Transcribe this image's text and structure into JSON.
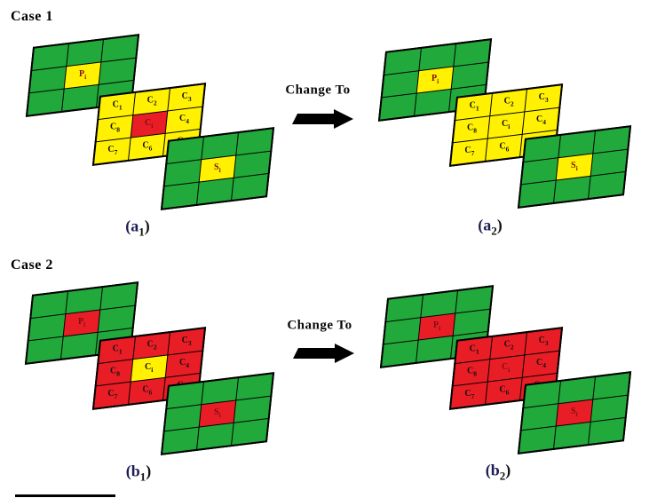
{
  "colors": {
    "plane_green": "#22A93C",
    "plane_yellow": "#FFF101",
    "plane_red": "#E91D25",
    "label_dark_red": "#7A1116",
    "label_black": "#111111",
    "caption_navy": "#1C1C54",
    "caption_black": "#111111",
    "arrow_black": "#000000"
  },
  "figure": {
    "cases": [
      {
        "label": "Case 1",
        "change_to": "Change To",
        "panels": [
          {
            "caption": {
              "pre": "(a",
              "sub": "1",
              "post": ")"
            },
            "planes": [
              {
                "name": "previous-frame-plane",
                "cells": [
                  {
                    "bg": "green"
                  },
                  {
                    "bg": "green"
                  },
                  {
                    "bg": "green"
                  },
                  {
                    "bg": "green"
                  },
                  {
                    "bg": "yellow",
                    "label": {
                      "base": "P",
                      "sub": "i"
                    },
                    "label_color": "dark_red"
                  },
                  {
                    "bg": "green"
                  },
                  {
                    "bg": "green"
                  },
                  {
                    "bg": "green"
                  },
                  {
                    "bg": "green"
                  }
                ]
              },
              {
                "name": "current-frame-plane",
                "cells": [
                  {
                    "bg": "yellow",
                    "label": {
                      "base": "C",
                      "sub": "1"
                    },
                    "label_color": "black"
                  },
                  {
                    "bg": "yellow",
                    "label": {
                      "base": "C",
                      "sub": "2"
                    },
                    "label_color": "black"
                  },
                  {
                    "bg": "yellow",
                    "label": {
                      "base": "C",
                      "sub": "3"
                    },
                    "label_color": "black"
                  },
                  {
                    "bg": "yellow",
                    "label": {
                      "base": "C",
                      "sub": "8"
                    },
                    "label_color": "black"
                  },
                  {
                    "bg": "red",
                    "label": {
                      "base": "C",
                      "sub": "i"
                    },
                    "label_color": "dark_red"
                  },
                  {
                    "bg": "yellow",
                    "label": {
                      "base": "C",
                      "sub": "4"
                    },
                    "label_color": "black"
                  },
                  {
                    "bg": "yellow",
                    "label": {
                      "base": "C",
                      "sub": "7"
                    },
                    "label_color": "black"
                  },
                  {
                    "bg": "yellow",
                    "label": {
                      "base": "C",
                      "sub": "6"
                    },
                    "label_color": "black"
                  },
                  {
                    "bg": "yellow",
                    "label": {
                      "base": "C",
                      "sub": "5"
                    },
                    "label_color": "black"
                  }
                ]
              },
              {
                "name": "subsequent-frame-plane",
                "cells": [
                  {
                    "bg": "green"
                  },
                  {
                    "bg": "green"
                  },
                  {
                    "bg": "green"
                  },
                  {
                    "bg": "green"
                  },
                  {
                    "bg": "yellow",
                    "label": {
                      "base": "S",
                      "sub": "i"
                    },
                    "label_color": "dark_red"
                  },
                  {
                    "bg": "green"
                  },
                  {
                    "bg": "green"
                  },
                  {
                    "bg": "green"
                  },
                  {
                    "bg": "green"
                  }
                ]
              }
            ]
          },
          {
            "caption": {
              "pre": "(a",
              "sub": "2",
              "post": ")"
            },
            "planes": [
              {
                "name": "previous-frame-plane",
                "cells": [
                  {
                    "bg": "green"
                  },
                  {
                    "bg": "green"
                  },
                  {
                    "bg": "green"
                  },
                  {
                    "bg": "green"
                  },
                  {
                    "bg": "yellow",
                    "label": {
                      "base": "P",
                      "sub": "i"
                    },
                    "label_color": "dark_red"
                  },
                  {
                    "bg": "green"
                  },
                  {
                    "bg": "green"
                  },
                  {
                    "bg": "green"
                  },
                  {
                    "bg": "green"
                  }
                ]
              },
              {
                "name": "current-frame-plane",
                "cells": [
                  {
                    "bg": "yellow",
                    "label": {
                      "base": "C",
                      "sub": "1"
                    },
                    "label_color": "black"
                  },
                  {
                    "bg": "yellow",
                    "label": {
                      "base": "C",
                      "sub": "2"
                    },
                    "label_color": "black"
                  },
                  {
                    "bg": "yellow",
                    "label": {
                      "base": "C",
                      "sub": "3"
                    },
                    "label_color": "black"
                  },
                  {
                    "bg": "yellow",
                    "label": {
                      "base": "C",
                      "sub": "8"
                    },
                    "label_color": "black"
                  },
                  {
                    "bg": "yellow",
                    "label": {
                      "base": "C",
                      "sub": "i"
                    },
                    "label_color": "black"
                  },
                  {
                    "bg": "yellow",
                    "label": {
                      "base": "C",
                      "sub": "4"
                    },
                    "label_color": "black"
                  },
                  {
                    "bg": "yellow",
                    "label": {
                      "base": "C",
                      "sub": "7"
                    },
                    "label_color": "black"
                  },
                  {
                    "bg": "yellow",
                    "label": {
                      "base": "C",
                      "sub": "6"
                    },
                    "label_color": "black"
                  },
                  {
                    "bg": "yellow",
                    "label": {
                      "base": "C",
                      "sub": "5"
                    },
                    "label_color": "black"
                  }
                ]
              },
              {
                "name": "subsequent-frame-plane",
                "cells": [
                  {
                    "bg": "green"
                  },
                  {
                    "bg": "green"
                  },
                  {
                    "bg": "green"
                  },
                  {
                    "bg": "green"
                  },
                  {
                    "bg": "yellow",
                    "label": {
                      "base": "S",
                      "sub": "i"
                    },
                    "label_color": "dark_red"
                  },
                  {
                    "bg": "green"
                  },
                  {
                    "bg": "green"
                  },
                  {
                    "bg": "green"
                  },
                  {
                    "bg": "green"
                  }
                ]
              }
            ]
          }
        ]
      },
      {
        "label": "Case 2",
        "change_to": "Change To",
        "panels": [
          {
            "caption": {
              "pre": "(b",
              "sub": "1",
              "post": ")"
            },
            "planes": [
              {
                "name": "previous-frame-plane",
                "cells": [
                  {
                    "bg": "green"
                  },
                  {
                    "bg": "green"
                  },
                  {
                    "bg": "green"
                  },
                  {
                    "bg": "green"
                  },
                  {
                    "bg": "red",
                    "label": {
                      "base": "P",
                      "sub": "i"
                    },
                    "label_color": "dark_red"
                  },
                  {
                    "bg": "green"
                  },
                  {
                    "bg": "green"
                  },
                  {
                    "bg": "green"
                  },
                  {
                    "bg": "green"
                  }
                ]
              },
              {
                "name": "current-frame-plane",
                "cells": [
                  {
                    "bg": "red",
                    "label": {
                      "base": "C",
                      "sub": "1"
                    },
                    "label_color": "black"
                  },
                  {
                    "bg": "red",
                    "label": {
                      "base": "C",
                      "sub": "2"
                    },
                    "label_color": "black"
                  },
                  {
                    "bg": "red",
                    "label": {
                      "base": "C",
                      "sub": "3"
                    },
                    "label_color": "black"
                  },
                  {
                    "bg": "red",
                    "label": {
                      "base": "C",
                      "sub": "8"
                    },
                    "label_color": "black"
                  },
                  {
                    "bg": "yellow",
                    "label": {
                      "base": "C",
                      "sub": "i"
                    },
                    "label_color": "black"
                  },
                  {
                    "bg": "red",
                    "label": {
                      "base": "C",
                      "sub": "4"
                    },
                    "label_color": "black"
                  },
                  {
                    "bg": "red",
                    "label": {
                      "base": "C",
                      "sub": "7"
                    },
                    "label_color": "black"
                  },
                  {
                    "bg": "red",
                    "label": {
                      "base": "C",
                      "sub": "6"
                    },
                    "label_color": "black"
                  },
                  {
                    "bg": "red",
                    "label": {
                      "base": "C",
                      "sub": "5"
                    },
                    "label_color": "black"
                  }
                ]
              },
              {
                "name": "subsequent-frame-plane",
                "cells": [
                  {
                    "bg": "green"
                  },
                  {
                    "bg": "green"
                  },
                  {
                    "bg": "green"
                  },
                  {
                    "bg": "green"
                  },
                  {
                    "bg": "red",
                    "label": {
                      "base": "S",
                      "sub": "i"
                    },
                    "label_color": "dark_red"
                  },
                  {
                    "bg": "green"
                  },
                  {
                    "bg": "green"
                  },
                  {
                    "bg": "green"
                  },
                  {
                    "bg": "green"
                  }
                ]
              }
            ]
          },
          {
            "caption": {
              "pre": "(b",
              "sub": "2",
              "post": ")"
            },
            "planes": [
              {
                "name": "previous-frame-plane",
                "cells": [
                  {
                    "bg": "green"
                  },
                  {
                    "bg": "green"
                  },
                  {
                    "bg": "green"
                  },
                  {
                    "bg": "green"
                  },
                  {
                    "bg": "red",
                    "label": {
                      "base": "P",
                      "sub": "i"
                    },
                    "label_color": "dark_red"
                  },
                  {
                    "bg": "green"
                  },
                  {
                    "bg": "green"
                  },
                  {
                    "bg": "green"
                  },
                  {
                    "bg": "green"
                  }
                ]
              },
              {
                "name": "current-frame-plane",
                "cells": [
                  {
                    "bg": "red",
                    "label": {
                      "base": "C",
                      "sub": "1"
                    },
                    "label_color": "black"
                  },
                  {
                    "bg": "red",
                    "label": {
                      "base": "C",
                      "sub": "2"
                    },
                    "label_color": "black"
                  },
                  {
                    "bg": "red",
                    "label": {
                      "base": "C",
                      "sub": "3"
                    },
                    "label_color": "black"
                  },
                  {
                    "bg": "red",
                    "label": {
                      "base": "C",
                      "sub": "8"
                    },
                    "label_color": "black"
                  },
                  {
                    "bg": "red",
                    "label": {
                      "base": "C",
                      "sub": "i"
                    },
                    "label_color": "dark_red"
                  },
                  {
                    "bg": "red",
                    "label": {
                      "base": "C",
                      "sub": "4"
                    },
                    "label_color": "black"
                  },
                  {
                    "bg": "red",
                    "label": {
                      "base": "C",
                      "sub": "7"
                    },
                    "label_color": "black"
                  },
                  {
                    "bg": "red",
                    "label": {
                      "base": "C",
                      "sub": "6"
                    },
                    "label_color": "black"
                  },
                  {
                    "bg": "red",
                    "label": {
                      "base": "C",
                      "sub": "5"
                    },
                    "label_color": "black"
                  }
                ]
              },
              {
                "name": "subsequent-frame-plane",
                "cells": [
                  {
                    "bg": "green"
                  },
                  {
                    "bg": "green"
                  },
                  {
                    "bg": "green"
                  },
                  {
                    "bg": "green"
                  },
                  {
                    "bg": "red",
                    "label": {
                      "base": "S",
                      "sub": "i"
                    },
                    "label_color": "dark_red"
                  },
                  {
                    "bg": "green"
                  },
                  {
                    "bg": "green"
                  },
                  {
                    "bg": "green"
                  },
                  {
                    "bg": "green"
                  }
                ]
              }
            ]
          }
        ]
      }
    ]
  }
}
